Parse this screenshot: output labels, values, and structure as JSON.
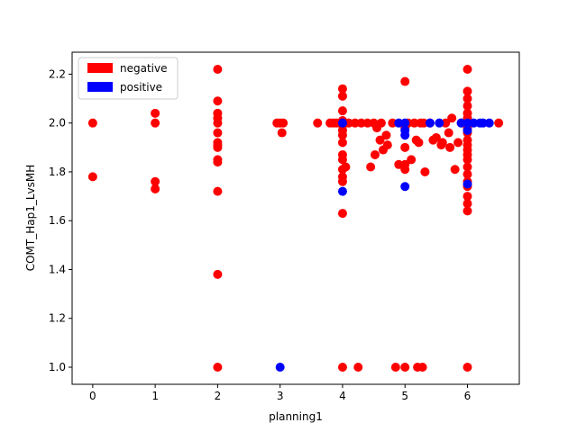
{
  "chart_data": {
    "type": "scatter",
    "title": "",
    "xlabel": "planning1",
    "ylabel": "COMT_Hap1_LvsMH",
    "xlim": [
      -0.33,
      6.83
    ],
    "ylim": [
      0.93,
      2.29
    ],
    "xticks": [
      0,
      1,
      2,
      3,
      4,
      5,
      6
    ],
    "yticks": [
      1.0,
      1.2,
      1.4,
      1.6,
      1.8,
      2.0,
      2.2
    ],
    "ytick_labels": [
      "1.0",
      "1.2",
      "1.4",
      "1.6",
      "1.8",
      "2.0",
      "2.2"
    ],
    "grid": false,
    "legend_position": "upper-left",
    "series": [
      {
        "name": "negative",
        "color": "#ff0000",
        "points": [
          [
            0,
            2.0
          ],
          [
            0,
            1.78
          ],
          [
            1,
            2.04
          ],
          [
            1,
            2.0
          ],
          [
            1,
            1.76
          ],
          [
            1,
            1.73
          ],
          [
            2,
            2.22
          ],
          [
            2,
            2.09
          ],
          [
            2,
            2.04
          ],
          [
            2,
            2.02
          ],
          [
            2,
            2.0
          ],
          [
            2,
            1.96
          ],
          [
            2,
            1.92
          ],
          [
            2,
            1.91
          ],
          [
            2,
            1.9
          ],
          [
            2,
            1.85
          ],
          [
            2,
            1.84
          ],
          [
            2,
            1.72
          ],
          [
            2,
            1.38
          ],
          [
            2,
            1.0
          ],
          [
            2.95,
            2.0
          ],
          [
            3.0,
            2.0
          ],
          [
            3.03,
            1.96
          ],
          [
            3.05,
            2.0
          ],
          [
            3.6,
            2.0
          ],
          [
            3.8,
            2.0
          ],
          [
            3.85,
            2.0
          ],
          [
            3.9,
            2.0
          ],
          [
            4,
            2.14
          ],
          [
            4,
            2.11
          ],
          [
            4,
            2.05
          ],
          [
            4,
            2.01
          ],
          [
            4,
            1.99
          ],
          [
            4,
            1.97
          ],
          [
            4,
            1.95
          ],
          [
            4,
            1.92
          ],
          [
            4,
            1.87
          ],
          [
            4,
            1.85
          ],
          [
            4,
            1.81
          ],
          [
            4,
            1.78
          ],
          [
            4,
            1.76
          ],
          [
            4,
            1.63
          ],
          [
            4,
            1.0
          ],
          [
            4.05,
            1.82
          ],
          [
            4.1,
            2.0
          ],
          [
            4.2,
            2.0
          ],
          [
            4.25,
            1.0
          ],
          [
            4.3,
            2.0
          ],
          [
            4.4,
            2.0
          ],
          [
            4.45,
            1.82
          ],
          [
            4.5,
            2.0
          ],
          [
            4.52,
            1.87
          ],
          [
            4.55,
            1.98
          ],
          [
            4.6,
            1.93
          ],
          [
            4.62,
            2.0
          ],
          [
            4.65,
            1.89
          ],
          [
            4.7,
            1.95
          ],
          [
            4.72,
            1.91
          ],
          [
            4.8,
            2.0
          ],
          [
            4.85,
            1.0
          ],
          [
            4.9,
            1.83
          ],
          [
            5,
            2.17
          ],
          [
            5,
            1.98
          ],
          [
            5,
            1.9
          ],
          [
            5,
            1.83
          ],
          [
            5,
            1.81
          ],
          [
            5,
            1.0
          ],
          [
            5.05,
            2.0
          ],
          [
            5.1,
            1.85
          ],
          [
            5.15,
            2.0
          ],
          [
            5.18,
            1.93
          ],
          [
            5.2,
            1.0
          ],
          [
            5.22,
            1.92
          ],
          [
            5.25,
            2.0
          ],
          [
            5.28,
            1.0
          ],
          [
            5.3,
            2.0
          ],
          [
            5.32,
            1.8
          ],
          [
            5.4,
            2.0
          ],
          [
            5.45,
            1.93
          ],
          [
            5.5,
            1.94
          ],
          [
            5.58,
            1.91
          ],
          [
            5.6,
            1.92
          ],
          [
            5.65,
            2.0
          ],
          [
            5.7,
            1.96
          ],
          [
            5.72,
            1.9
          ],
          [
            5.75,
            2.02
          ],
          [
            5.8,
            1.81
          ],
          [
            5.85,
            1.92
          ],
          [
            5.9,
            2.0
          ],
          [
            6,
            2.22
          ],
          [
            6,
            2.13
          ],
          [
            6,
            2.1
          ],
          [
            6,
            2.07
          ],
          [
            6,
            2.04
          ],
          [
            6,
            2.02
          ],
          [
            6,
            2.0
          ],
          [
            6,
            1.98
          ],
          [
            6,
            1.96
          ],
          [
            6,
            1.93
          ],
          [
            6,
            1.91
          ],
          [
            6,
            1.89
          ],
          [
            6,
            1.87
          ],
          [
            6,
            1.85
          ],
          [
            6,
            1.82
          ],
          [
            6,
            1.79
          ],
          [
            6,
            1.76
          ],
          [
            6,
            1.74
          ],
          [
            6,
            1.7
          ],
          [
            6,
            1.67
          ],
          [
            6,
            1.64
          ],
          [
            6,
            1.0
          ],
          [
            6.5,
            2.0
          ]
        ]
      },
      {
        "name": "positive",
        "color": "#0000ff",
        "points": [
          [
            3,
            1.0
          ],
          [
            4,
            2.0
          ],
          [
            4,
            1.72
          ],
          [
            4.9,
            2.0
          ],
          [
            5,
            2.0
          ],
          [
            5,
            1.97
          ],
          [
            5,
            1.95
          ],
          [
            5,
            1.74
          ],
          [
            5.4,
            2.0
          ],
          [
            5.55,
            2.0
          ],
          [
            5.9,
            2.0
          ],
          [
            6,
            2.0
          ],
          [
            6,
            1.97
          ],
          [
            6,
            1.75
          ],
          [
            6.1,
            2.0
          ],
          [
            6.2,
            2.0
          ],
          [
            6.25,
            2.0
          ],
          [
            6.35,
            2.0
          ]
        ]
      }
    ]
  }
}
